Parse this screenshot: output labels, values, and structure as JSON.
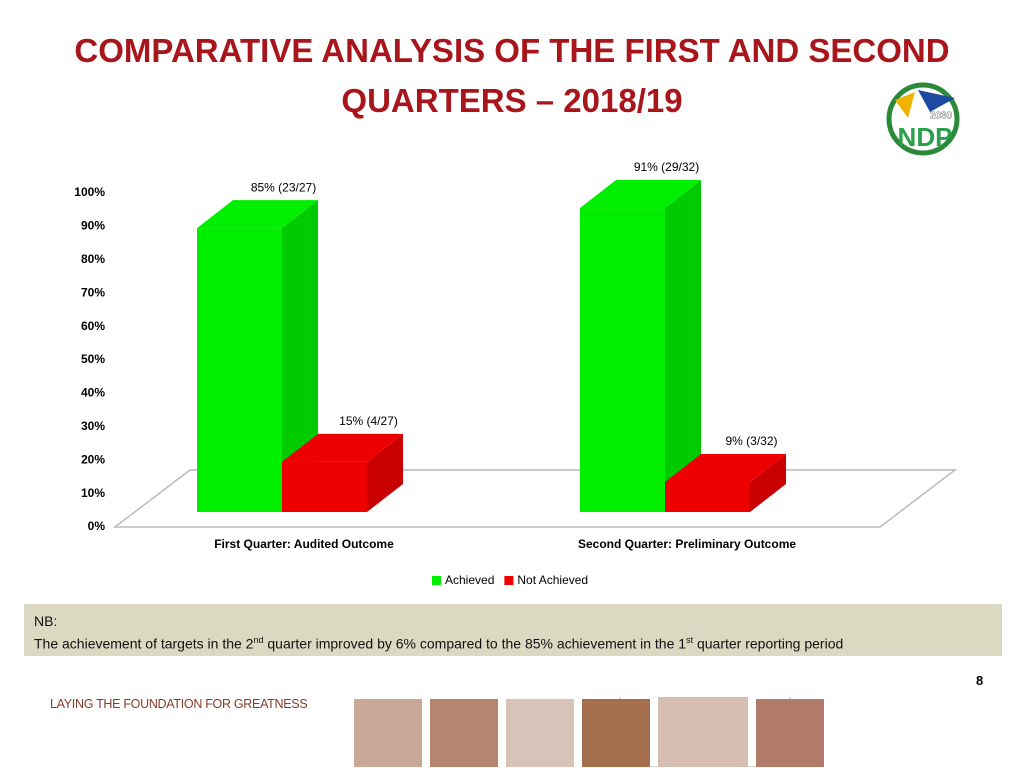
{
  "header": {
    "title_lines": [
      "COMPARATIVE ANALYSIS OF THE FIRST AND  SECOND",
      "QUARTERS – 2018/19"
    ]
  },
  "logo": {
    "year": "2030",
    "text": "NDP"
  },
  "chart_data": {
    "type": "bar3d",
    "categories": [
      "First Quarter: Audited Outcome",
      "Second Quarter: Preliminary Outcome"
    ],
    "series": [
      {
        "name": "Achieved",
        "color": "#00ee00",
        "values": [
          85,
          91
        ],
        "value_labels": [
          "85% (23/27)",
          "91% (29/32)"
        ]
      },
      {
        "name": "Not Achieved",
        "color": "#ee0000",
        "values": [
          15,
          9
        ],
        "value_labels": [
          "15% (4/27)",
          "9% (3/32)"
        ]
      }
    ],
    "ylim": [
      0,
      100
    ],
    "yticks": [
      {
        "value": 0,
        "label": "0%"
      },
      {
        "value": 10,
        "label": "10%"
      },
      {
        "value": 20,
        "label": "20%"
      },
      {
        "value": 30,
        "label": "30%"
      },
      {
        "value": 40,
        "label": "40%"
      },
      {
        "value": 50,
        "label": "50%"
      },
      {
        "value": 60,
        "label": "60%"
      },
      {
        "value": 70,
        "label": "70%"
      },
      {
        "value": 80,
        "label": "80%"
      },
      {
        "value": 90,
        "label": "90%"
      },
      {
        "value": 100,
        "label": "100%"
      }
    ],
    "legend": "bottom"
  },
  "note": {
    "heading": "NB:",
    "parts": [
      "The achievement of targets  in the 2",
      "nd",
      " quarter improved by 6%  compared to the 85% achievement in the 1",
      "st",
      " quarter reporting period"
    ]
  },
  "page_number": "8",
  "footer": "LAYING THE FOUNDATION FOR GREATNESS"
}
